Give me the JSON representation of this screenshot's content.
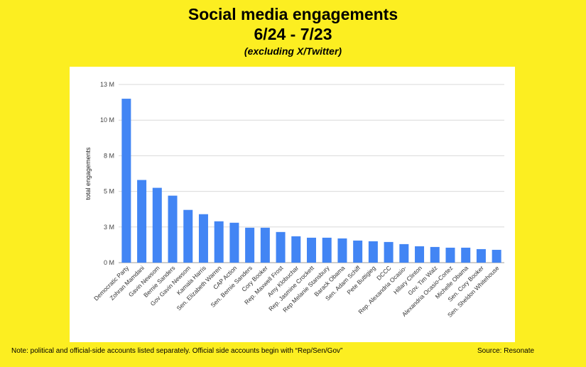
{
  "chart_data": {
    "type": "bar",
    "title": "Social media engagements",
    "title_line2": "6/24 - 7/23",
    "subtitle": "(excluding X/Twitter)",
    "xlabel": "",
    "ylabel": "total engagements",
    "ylim": [
      0,
      12500000
    ],
    "yticks": [
      0,
      2500000,
      5000000,
      7500000,
      10000000,
      12500000
    ],
    "ytick_labels": [
      "0 M",
      "3 M",
      "5 M",
      "8 M",
      "10 M",
      "13 M"
    ],
    "grid": true,
    "bar_color": "#4285f4",
    "categories": [
      "Democratic Party",
      "Zohran Mamdani",
      "Gavin Newsom",
      "Bernie Sanders",
      "Gov Gavin Newsom",
      "Kamala Harris",
      "Sen. Elizabeth Warren",
      "CAP Action",
      "Sen. Bernie Sanders",
      "Cory Booker",
      "Rep. Maxwell Frost",
      "Amy Klobuchar",
      "Rep. Jasmine Crockett",
      "Rep Melanie Stansbury",
      "Barack Obama",
      "Sen. Adam Schiff",
      "Pete Buttigieg",
      "DCCC",
      "Rep. Alexandria Ocasio-",
      "Hillary Clinton",
      "Gov. Tim Walz",
      "Alexandria Ocasio-Cortez",
      "Michelle Obama",
      "Sen. Cory Booker",
      "Sen. Sheldon Whitehouse"
    ],
    "values": [
      11500000,
      5800000,
      5250000,
      4700000,
      3700000,
      3400000,
      2900000,
      2800000,
      2450000,
      2450000,
      2150000,
      1850000,
      1750000,
      1750000,
      1700000,
      1550000,
      1500000,
      1450000,
      1300000,
      1150000,
      1100000,
      1050000,
      1050000,
      950000,
      900000
    ]
  },
  "footer": {
    "note": "Note: political and official-side accounts listed separately. Official side accounts begin with “Rep/Sen/Gov”",
    "source": "Source: Resonate"
  }
}
